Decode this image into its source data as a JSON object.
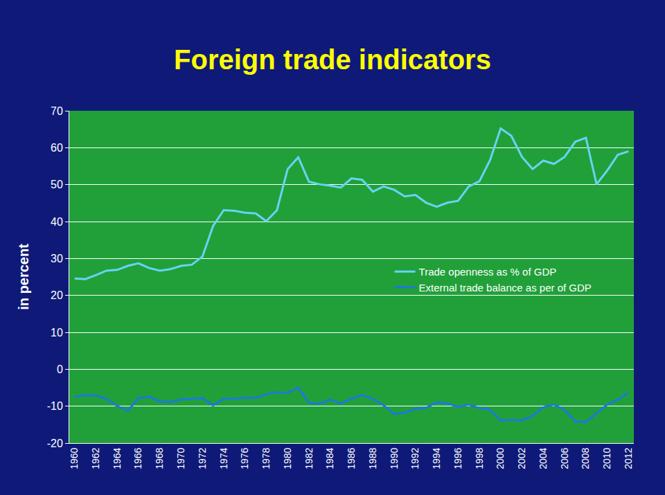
{
  "chart_data": {
    "type": "line",
    "title": "Foreign trade indicators",
    "y_label": "in percent",
    "categories": [
      "1960",
      null,
      "1962",
      null,
      "1964",
      null,
      "1966",
      null,
      "1968",
      null,
      "1970",
      null,
      "1972",
      null,
      "1974",
      null,
      "1976",
      null,
      "1978",
      null,
      "1980",
      null,
      "1982",
      null,
      "1984",
      null,
      "1986",
      null,
      "1988",
      null,
      "1990",
      null,
      "1992",
      null,
      "1994",
      null,
      "1996",
      null,
      "1998",
      null,
      "2000",
      null,
      "2002",
      null,
      "2004",
      null,
      "2006",
      null,
      "2008",
      null,
      "2010",
      null,
      "2012"
    ],
    "series": [
      {
        "name": "Trade openness as % of GDP",
        "color": "#66d4f5",
        "values": [
          24.6,
          24.4,
          25.5,
          26.7,
          26.9,
          28.0,
          28.7,
          27.4,
          26.7,
          27.1,
          28.0,
          28.3,
          30.5,
          38.8,
          43.1,
          42.9,
          42.4,
          42.2,
          40.1,
          43.1,
          54.2,
          57.4,
          50.8,
          50.1,
          49.7,
          49.2,
          51.7,
          51.3,
          48.1,
          49.5,
          48.6,
          46.8,
          47.2,
          45.1,
          44.0,
          45.1,
          45.6,
          49.5,
          50.9,
          56.6,
          65.2,
          63.2,
          57.5,
          54.2,
          56.5,
          55.6,
          57.5,
          61.6,
          62.7,
          50.1,
          53.8,
          58.1,
          59.0
        ]
      },
      {
        "name": "External trade balance as per of GDP",
        "color": "#1f78d8",
        "values": [
          -7.5,
          -7.0,
          -7.1,
          -8.0,
          -10.0,
          -11.2,
          -7.8,
          -7.5,
          -8.7,
          -8.9,
          -8.2,
          -8.0,
          -7.8,
          -9.8,
          -8.0,
          -8.0,
          -7.7,
          -7.7,
          -6.8,
          -6.2,
          -6.4,
          -5.0,
          -9.1,
          -9.4,
          -8.2,
          -9.3,
          -8.0,
          -7.0,
          -8.0,
          -9.8,
          -12.1,
          -11.8,
          -10.7,
          -10.5,
          -8.9,
          -9.3,
          -10.2,
          -9.6,
          -10.5,
          -11.0,
          -13.9,
          -13.7,
          -13.9,
          -12.6,
          -10.3,
          -9.6,
          -11.0,
          -14.1,
          -14.4,
          -11.9,
          -9.6,
          -8.2,
          -6.4
        ]
      }
    ],
    "ylim": [
      -20,
      70
    ],
    "yticks": [
      -20,
      -10,
      0,
      10,
      20,
      30,
      40,
      50,
      60,
      70
    ],
    "grid": true,
    "legend": "right"
  }
}
